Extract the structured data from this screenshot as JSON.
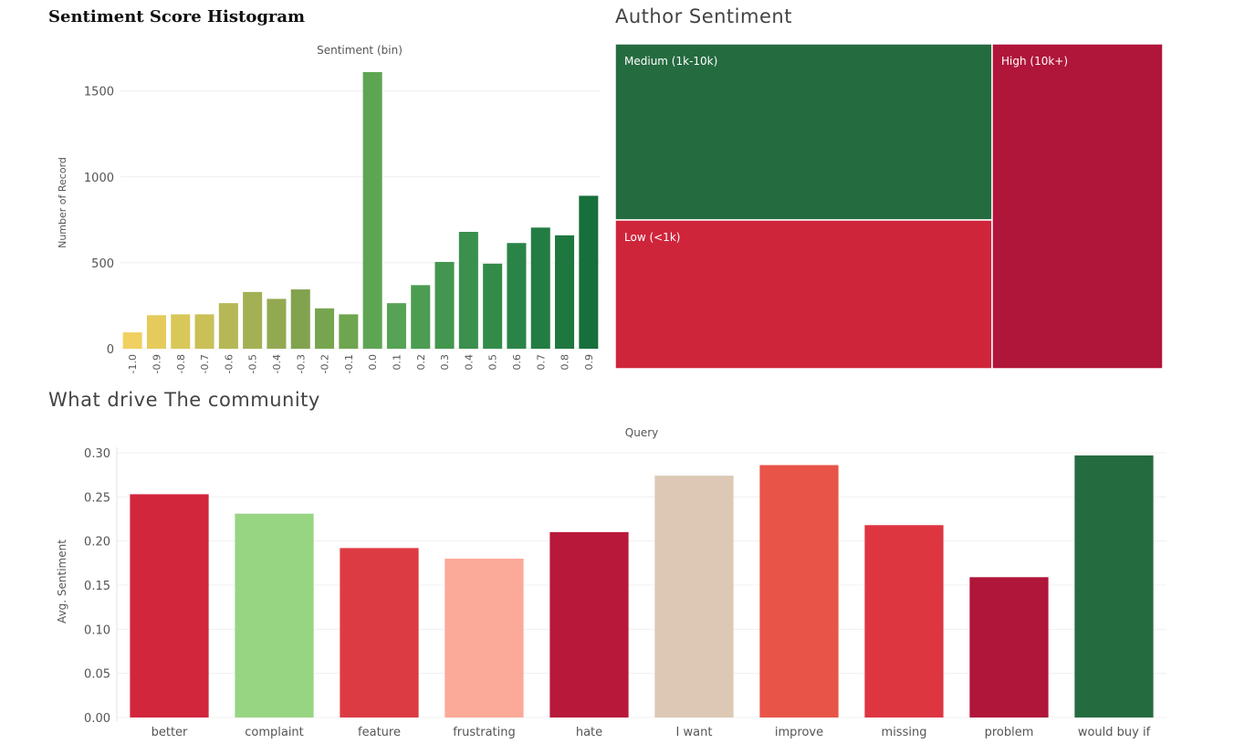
{
  "histogram": {
    "title": "Sentiment Score Histogram"
  },
  "treemap": {
    "title": "Author Sentiment"
  },
  "query_chart": {
    "title": "What drive The community"
  },
  "chart_data": [
    {
      "type": "bar",
      "title": "Sentiment Score Histogram",
      "xlabel": "Sentiment (bin)",
      "ylabel": "Number of Record",
      "categories": [
        "-1.0",
        "-0.9",
        "-0.8",
        "-0.7",
        "-0.6",
        "-0.5",
        "-0.4",
        "-0.3",
        "-0.2",
        "-0.1",
        "0.0",
        "0.1",
        "0.2",
        "0.3",
        "0.4",
        "0.5",
        "0.6",
        "0.7",
        "0.8",
        "0.9"
      ],
      "values": [
        95,
        195,
        200,
        200,
        265,
        330,
        290,
        345,
        235,
        200,
        1610,
        265,
        370,
        505,
        680,
        495,
        615,
        705,
        660,
        890
      ],
      "colors": [
        "#f0d060",
        "#e4cb5c",
        "#d8c85a",
        "#c9c057",
        "#b5b855",
        "#a3b053",
        "#93a951",
        "#82a24f",
        "#77a54f",
        "#6ea54f",
        "#5ea553",
        "#56a355",
        "#4c9c52",
        "#43964f",
        "#3a904c",
        "#338b4a",
        "#2b8447",
        "#237d43",
        "#1d773f",
        "#176f3b"
      ],
      "yticks": [
        0,
        500,
        1000,
        1500
      ],
      "ylim": [
        0,
        1700
      ],
      "grid": true
    },
    {
      "type": "treemap",
      "title": "Author Sentiment",
      "nodes": [
        {
          "label": "Medium (1k-10k)",
          "color": "#256b40"
        },
        {
          "label": "Low (<1k)",
          "color": "#cf253b"
        },
        {
          "label": "High (10k+)",
          "color": "#b0153a"
        }
      ]
    },
    {
      "type": "bar",
      "title": "What drive The community",
      "xlabel": "Query",
      "ylabel": "Avg. Sentiment",
      "categories": [
        "better",
        "complaint",
        "feature",
        "frustrating",
        "hate",
        "I want",
        "improve",
        "missing",
        "problem",
        "would buy if"
      ],
      "values": [
        0.253,
        0.231,
        0.192,
        0.18,
        0.21,
        0.274,
        0.286,
        0.218,
        0.159,
        0.297
      ],
      "colors": [
        "#d2263d",
        "#98d583",
        "#dd3b43",
        "#fba998",
        "#b8193a",
        "#dcc8b4",
        "#e85448",
        "#dd3641",
        "#b0153a",
        "#256b40"
      ],
      "yticks": [
        "0.00",
        "0.05",
        "0.10",
        "0.15",
        "0.20",
        "0.25",
        "0.30"
      ],
      "ylim": [
        0,
        0.3
      ],
      "grid": true
    }
  ]
}
